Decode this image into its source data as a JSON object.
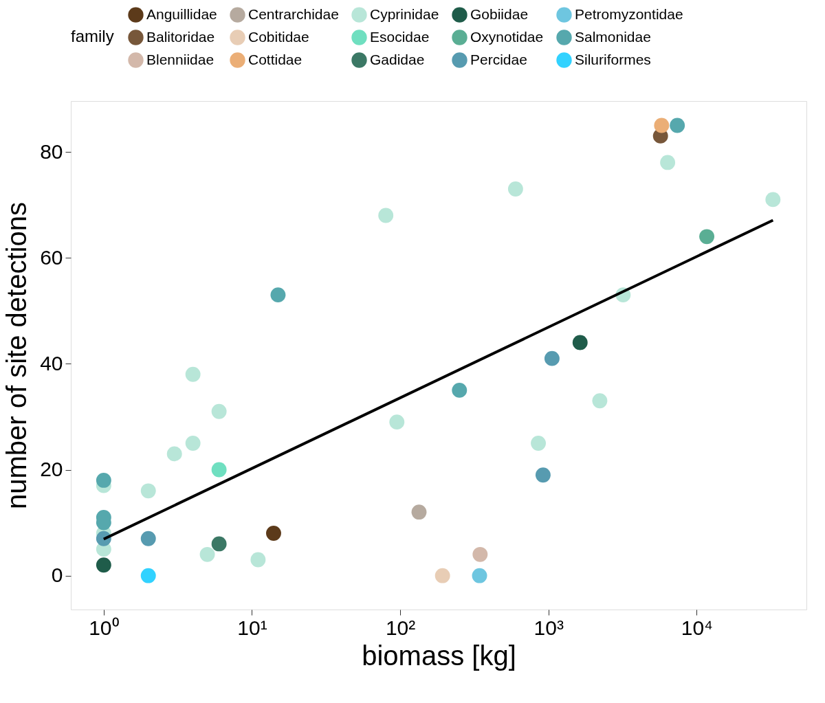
{
  "chart_data": {
    "type": "scatter",
    "xlabel": "biomass [kg]",
    "ylabel": "number of site detections",
    "legend_title": "family",
    "legend": "top",
    "grid": false,
    "marker": "circle",
    "log": "x",
    "xlim": [
      0.6,
      55000
    ],
    "xticks": [
      {
        "value": 1,
        "label": "10⁰"
      },
      {
        "value": 10,
        "label": "10¹"
      },
      {
        "value": 100,
        "label": "10²"
      },
      {
        "value": 1000,
        "label": "10³"
      },
      {
        "value": 10000,
        "label": "10⁴"
      }
    ],
    "ylim": [
      -6.4,
      89.6
    ],
    "yticks": [
      0,
      20,
      40,
      60,
      80
    ],
    "series": [
      {
        "name": "Anguillidae",
        "color": "#5c3a1a",
        "x": [
          14
        ],
        "values": [
          8
        ]
      },
      {
        "name": "Balitoridae",
        "color": "#77573a",
        "x": [
          5700
        ],
        "values": [
          83
        ]
      },
      {
        "name": "Blenniidae",
        "color": "#d3b8aa",
        "x": [
          346
        ],
        "values": [
          4
        ]
      },
      {
        "name": "Centrarchidae",
        "color": "#b6aa9f",
        "x": [
          134
        ],
        "values": [
          12
        ]
      },
      {
        "name": "Cobitidae",
        "color": "#e8cdb5",
        "x": [
          193
        ],
        "values": [
          0
        ]
      },
      {
        "name": "Cottidae",
        "color": "#ebae76",
        "x": [
          5800
        ],
        "values": [
          85
        ]
      },
      {
        "name": "Cyprinidae",
        "color": "#b8e6d8",
        "x": [
          1,
          1,
          1,
          2,
          3,
          4,
          4,
          6,
          5,
          11,
          80,
          95,
          600,
          855,
          2220,
          3190,
          6370,
          32700
        ],
        "values": [
          17,
          8,
          5,
          16,
          23,
          25,
          38,
          31,
          4,
          3,
          68,
          29,
          73,
          25,
          33,
          53,
          78,
          71
        ]
      },
      {
        "name": "Esocidae",
        "color": "#6fdfc0",
        "x": [
          6
        ],
        "values": [
          20
        ]
      },
      {
        "name": "Gadidae",
        "color": "#3b7865",
        "x": [
          6
        ],
        "values": [
          6
        ]
      },
      {
        "name": "Gobiidae",
        "color": "#1f5c4a",
        "x": [
          1,
          1635
        ],
        "values": [
          2,
          44
        ]
      },
      {
        "name": "Oxynotidae",
        "color": "#5aae94",
        "x": [
          11700
        ],
        "values": [
          64
        ]
      },
      {
        "name": "Percidae",
        "color": "#579bb0",
        "x": [
          1,
          2,
          1057,
          920
        ],
        "values": [
          7,
          7,
          41,
          19
        ]
      },
      {
        "name": "Petromyzontidae",
        "color": "#6ec6e0",
        "x": [
          343
        ],
        "values": [
          0
        ]
      },
      {
        "name": "Salmonidae",
        "color": "#56a8ad",
        "x": [
          1,
          1,
          1,
          15,
          251,
          7400
        ],
        "values": [
          18,
          11,
          10,
          53,
          35,
          85
        ]
      },
      {
        "name": "Siluriformes",
        "color": "#32d2ff",
        "x": [
          2
        ],
        "values": [
          0
        ]
      },
      {
        "type": "line",
        "marker": "none",
        "color": "#000000",
        "x": [
          1,
          32700
        ],
        "values": [
          6.9,
          67.1
        ]
      }
    ]
  }
}
